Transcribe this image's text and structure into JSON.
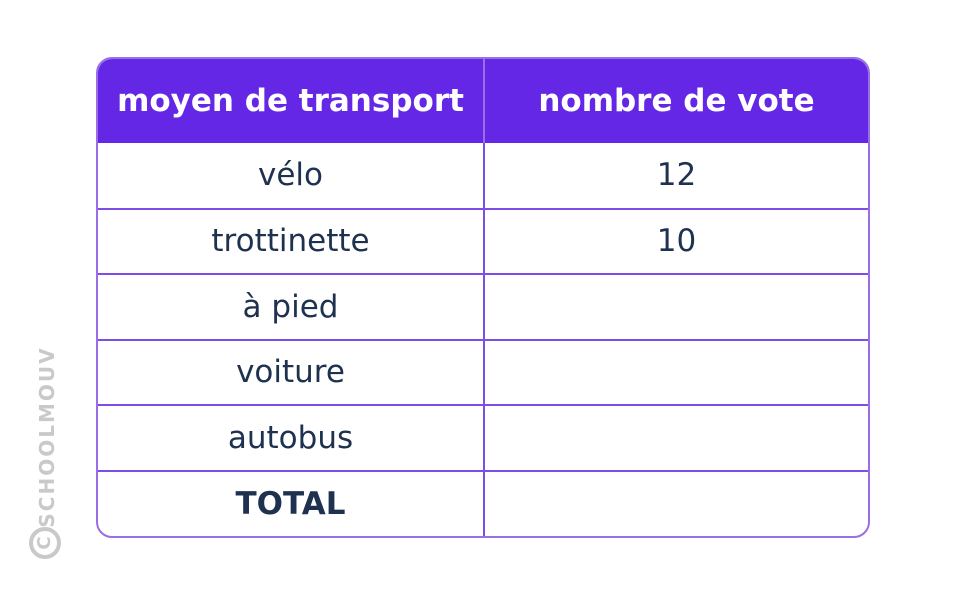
{
  "table": {
    "headers": [
      "moyen de transport",
      "nombre de vote"
    ],
    "rows": [
      {
        "label": "vélo",
        "value": "12"
      },
      {
        "label": "trottinette",
        "value": "10"
      },
      {
        "label": "à pied",
        "value": ""
      },
      {
        "label": "voiture",
        "value": ""
      },
      {
        "label": "autobus",
        "value": ""
      },
      {
        "label": "TOTAL",
        "value": ""
      }
    ]
  },
  "watermark": {
    "symbol": "C",
    "text": "SCHOOLMOUV"
  },
  "colors": {
    "header_bg": "#6527e6",
    "border": "#7e4ce6",
    "text": "#1e3250",
    "watermark": "#c9c9c9"
  }
}
